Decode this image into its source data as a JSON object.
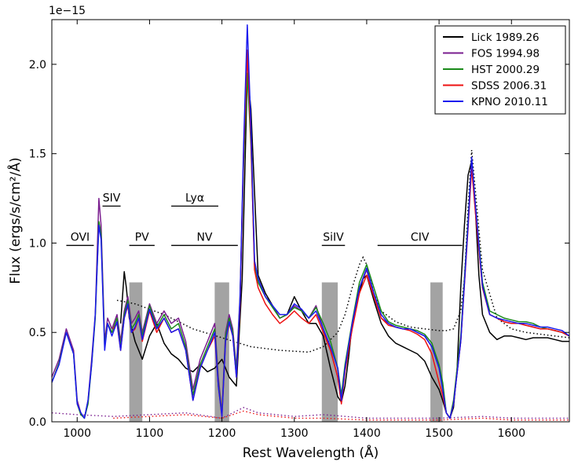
{
  "chart_data": {
    "type": "line",
    "xlabel": "Rest Wavelength (Å)",
    "ylabel": "Flux (ergs/s/cm²/Å)",
    "y_multiplier": "1e−15",
    "xlim": [
      965,
      1680
    ],
    "ylim": [
      0,
      2.25
    ],
    "x_ticks": [
      1000,
      1100,
      1200,
      1300,
      1400,
      1500,
      1600
    ],
    "x_tick_labels": [
      "1000",
      "1100",
      "1200",
      "1300",
      "1400",
      "1500",
      "1600"
    ],
    "y_ticks": [
      0.0,
      0.5,
      1.0,
      1.5,
      2.0
    ],
    "y_tick_labels": [
      "0.0",
      "0.5",
      "1.0",
      "1.5",
      "2.0"
    ],
    "legend_position": "top-right",
    "series": [
      {
        "name": "Lick 1989.26",
        "color": "#000000",
        "x": [
          1060,
          1065,
          1068,
          1072,
          1080,
          1090,
          1100,
          1110,
          1120,
          1130,
          1140,
          1150,
          1160,
          1170,
          1180,
          1190,
          1200,
          1210,
          1220,
          1228,
          1235,
          1240,
          1250,
          1260,
          1270,
          1280,
          1290,
          1300,
          1310,
          1320,
          1330,
          1340,
          1350,
          1360,
          1365,
          1370,
          1375,
          1380,
          1385,
          1390,
          1395,
          1400,
          1410,
          1420,
          1430,
          1440,
          1450,
          1460,
          1470,
          1480,
          1490,
          1500,
          1505,
          1510,
          1515,
          1520,
          1525,
          1530,
          1535,
          1540,
          1545,
          1550,
          1555,
          1560,
          1570,
          1580,
          1590,
          1600,
          1610,
          1620,
          1630,
          1640,
          1650,
          1660,
          1670,
          1680
        ],
        "y": [
          0.55,
          0.84,
          0.75,
          0.58,
          0.45,
          0.35,
          0.48,
          0.55,
          0.44,
          0.38,
          0.35,
          0.3,
          0.28,
          0.32,
          0.28,
          0.3,
          0.35,
          0.25,
          0.2,
          0.8,
          1.95,
          1.75,
          0.82,
          0.72,
          0.65,
          0.58,
          0.6,
          0.7,
          0.62,
          0.55,
          0.55,
          0.48,
          0.3,
          0.14,
          0.11,
          0.2,
          0.36,
          0.55,
          0.65,
          0.72,
          0.8,
          0.82,
          0.68,
          0.55,
          0.48,
          0.44,
          0.42,
          0.4,
          0.38,
          0.34,
          0.25,
          0.18,
          0.12,
          0.05,
          0.02,
          0.08,
          0.3,
          0.75,
          1.1,
          1.38,
          1.46,
          1.2,
          0.82,
          0.6,
          0.5,
          0.46,
          0.48,
          0.48,
          0.47,
          0.46,
          0.47,
          0.47,
          0.47,
          0.46,
          0.45,
          0.45
        ]
      },
      {
        "name": "FOS 1994.98",
        "color": "#7a1e8f",
        "x": [
          965,
          975,
          985,
          995,
          1000,
          1005,
          1010,
          1015,
          1020,
          1025,
          1030,
          1033,
          1038,
          1042,
          1048,
          1055,
          1060,
          1065,
          1070,
          1075,
          1080,
          1085,
          1090,
          1100,
          1110,
          1120,
          1130,
          1140,
          1150,
          1160,
          1170,
          1180,
          1190,
          1195,
          1200,
          1205,
          1210,
          1215,
          1220,
          1225,
          1230,
          1235,
          1240,
          1245,
          1250,
          1260,
          1270,
          1280,
          1290,
          1300,
          1310,
          1320,
          1330,
          1340,
          1350,
          1360,
          1365,
          1370,
          1380,
          1390,
          1400,
          1410,
          1420,
          1430,
          1440,
          1450,
          1460,
          1470,
          1480,
          1490,
          1500,
          1505,
          1510,
          1515,
          1520,
          1530,
          1540,
          1545,
          1550,
          1560,
          1570,
          1580,
          1590,
          1600,
          1610,
          1620,
          1630,
          1640,
          1650,
          1660,
          1670,
          1680
        ],
        "y": [
          0.25,
          0.35,
          0.52,
          0.4,
          0.12,
          0.05,
          0.02,
          0.12,
          0.35,
          0.6,
          1.25,
          1.1,
          0.45,
          0.58,
          0.52,
          0.6,
          0.45,
          0.62,
          0.7,
          0.55,
          0.58,
          0.62,
          0.5,
          0.66,
          0.55,
          0.62,
          0.55,
          0.58,
          0.45,
          0.18,
          0.35,
          0.45,
          0.55,
          0.25,
          0.05,
          0.5,
          0.6,
          0.52,
          0.3,
          0.7,
          1.5,
          2.05,
          1.6,
          0.9,
          0.8,
          0.7,
          0.65,
          0.58,
          0.6,
          0.65,
          0.62,
          0.58,
          0.65,
          0.52,
          0.4,
          0.25,
          0.12,
          0.3,
          0.55,
          0.75,
          0.85,
          0.7,
          0.58,
          0.55,
          0.53,
          0.52,
          0.52,
          0.5,
          0.48,
          0.42,
          0.3,
          0.2,
          0.05,
          0.02,
          0.1,
          0.45,
          1.1,
          1.45,
          1.2,
          0.75,
          0.6,
          0.58,
          0.56,
          0.55,
          0.55,
          0.54,
          0.53,
          0.52,
          0.52,
          0.51,
          0.5,
          0.48
        ]
      },
      {
        "name": "HST 2000.29",
        "color": "#1a8a1a",
        "x": [
          965,
          975,
          985,
          995,
          1000,
          1005,
          1010,
          1015,
          1020,
          1025,
          1030,
          1033,
          1038,
          1042,
          1048,
          1055,
          1060,
          1065,
          1070,
          1075,
          1080,
          1085,
          1090,
          1100,
          1110,
          1120,
          1130,
          1140,
          1150,
          1160,
          1170,
          1180,
          1190,
          1195,
          1200,
          1205,
          1210,
          1215,
          1220,
          1225,
          1230,
          1235,
          1240,
          1245,
          1250,
          1260,
          1270,
          1280,
          1290,
          1300,
          1310,
          1320,
          1330,
          1340,
          1350,
          1360,
          1365,
          1370,
          1380,
          1390,
          1400,
          1410,
          1420,
          1430,
          1440,
          1450,
          1460,
          1470,
          1480,
          1490,
          1500,
          1505,
          1510,
          1515,
          1520,
          1530,
          1540,
          1545,
          1550,
          1560,
          1570,
          1580,
          1590,
          1600,
          1610,
          1620,
          1630,
          1640,
          1650,
          1660,
          1670,
          1680
        ],
        "y": [
          0.22,
          0.33,
          0.5,
          0.38,
          0.1,
          0.04,
          0.02,
          0.1,
          0.32,
          0.58,
          1.12,
          1.05,
          0.42,
          0.55,
          0.5,
          0.58,
          0.42,
          0.6,
          0.68,
          0.52,
          0.55,
          0.6,
          0.48,
          0.65,
          0.53,
          0.6,
          0.52,
          0.55,
          0.42,
          0.15,
          0.32,
          0.42,
          0.52,
          0.22,
          0.04,
          0.48,
          0.58,
          0.5,
          0.28,
          0.68,
          1.45,
          1.95,
          1.55,
          0.88,
          0.78,
          0.7,
          0.64,
          0.58,
          0.6,
          0.64,
          0.62,
          0.58,
          0.64,
          0.55,
          0.45,
          0.3,
          0.15,
          0.32,
          0.56,
          0.78,
          0.88,
          0.75,
          0.62,
          0.56,
          0.54,
          0.53,
          0.52,
          0.51,
          0.49,
          0.44,
          0.32,
          0.22,
          0.05,
          0.02,
          0.12,
          0.48,
          1.12,
          1.45,
          1.22,
          0.78,
          0.62,
          0.6,
          0.58,
          0.57,
          0.56,
          0.56,
          0.55,
          0.53,
          0.52,
          0.51,
          0.5,
          0.48
        ]
      },
      {
        "name": "SDSS 2006.31",
        "color": "#ee1111",
        "x": [
          1050,
          1055,
          1060,
          1065,
          1070,
          1075,
          1080,
          1085,
          1090,
          1100,
          1110,
          1120,
          1130,
          1140,
          1150,
          1160,
          1170,
          1180,
          1190,
          1195,
          1200,
          1205,
          1210,
          1215,
          1220,
          1225,
          1230,
          1235,
          1240,
          1245,
          1250,
          1260,
          1270,
          1280,
          1290,
          1300,
          1310,
          1320,
          1330,
          1340,
          1350,
          1360,
          1365,
          1370,
          1380,
          1390,
          1400,
          1410,
          1420,
          1430,
          1440,
          1450,
          1460,
          1470,
          1480,
          1490,
          1500,
          1505,
          1510,
          1515,
          1520,
          1530,
          1540,
          1545,
          1550,
          1560,
          1570,
          1580,
          1590,
          1600,
          1610,
          1620,
          1630,
          1640,
          1650,
          1660,
          1670,
          1680
        ],
        "y": [
          0.52,
          0.55,
          0.4,
          0.58,
          0.65,
          0.5,
          0.52,
          0.58,
          0.45,
          0.62,
          0.5,
          0.58,
          0.5,
          0.52,
          0.4,
          0.12,
          0.3,
          0.4,
          0.48,
          0.2,
          0.03,
          0.45,
          0.55,
          0.48,
          0.25,
          0.65,
          1.5,
          2.08,
          1.58,
          0.85,
          0.75,
          0.66,
          0.6,
          0.55,
          0.58,
          0.62,
          0.58,
          0.55,
          0.6,
          0.5,
          0.4,
          0.25,
          0.1,
          0.28,
          0.52,
          0.72,
          0.82,
          0.7,
          0.58,
          0.54,
          0.53,
          0.52,
          0.51,
          0.49,
          0.46,
          0.38,
          0.22,
          0.15,
          0.05,
          0.02,
          0.1,
          0.45,
          1.08,
          1.42,
          1.18,
          0.75,
          0.6,
          0.58,
          0.56,
          0.55,
          0.55,
          0.54,
          0.53,
          0.52,
          0.52,
          0.51,
          0.5,
          0.48
        ]
      },
      {
        "name": "KPNO 2010.11",
        "color": "#1a1aee",
        "x": [
          965,
          975,
          985,
          995,
          1000,
          1005,
          1010,
          1015,
          1020,
          1025,
          1030,
          1033,
          1038,
          1042,
          1048,
          1055,
          1060,
          1065,
          1070,
          1075,
          1080,
          1085,
          1090,
          1100,
          1110,
          1120,
          1130,
          1140,
          1150,
          1160,
          1170,
          1180,
          1190,
          1195,
          1200,
          1205,
          1210,
          1215,
          1220,
          1225,
          1230,
          1235,
          1240,
          1245,
          1250,
          1260,
          1270,
          1280,
          1290,
          1300,
          1310,
          1320,
          1330,
          1340,
          1350,
          1360,
          1365,
          1370,
          1380,
          1390,
          1400,
          1410,
          1420,
          1430,
          1440,
          1450,
          1460,
          1470,
          1480,
          1490,
          1500,
          1505,
          1510,
          1515,
          1520,
          1530,
          1540,
          1545,
          1550,
          1560,
          1570,
          1580,
          1590,
          1600,
          1610,
          1620,
          1630,
          1640,
          1650,
          1660,
          1670,
          1680
        ],
        "y": [
          0.22,
          0.32,
          0.5,
          0.38,
          0.1,
          0.05,
          0.02,
          0.12,
          0.32,
          0.6,
          1.1,
          1.02,
          0.4,
          0.55,
          0.48,
          0.56,
          0.4,
          0.58,
          0.66,
          0.5,
          0.53,
          0.58,
          0.46,
          0.63,
          0.52,
          0.58,
          0.5,
          0.52,
          0.4,
          0.12,
          0.3,
          0.4,
          0.5,
          0.2,
          0.03,
          0.45,
          0.56,
          0.48,
          0.25,
          0.68,
          1.55,
          2.22,
          1.65,
          0.9,
          0.8,
          0.7,
          0.65,
          0.6,
          0.6,
          0.66,
          0.63,
          0.58,
          0.62,
          0.52,
          0.42,
          0.3,
          0.12,
          0.3,
          0.55,
          0.75,
          0.86,
          0.72,
          0.6,
          0.55,
          0.53,
          0.52,
          0.52,
          0.5,
          0.48,
          0.42,
          0.3,
          0.18,
          0.05,
          0.02,
          0.1,
          0.45,
          1.1,
          1.48,
          1.22,
          0.76,
          0.6,
          0.58,
          0.57,
          0.56,
          0.55,
          0.55,
          0.54,
          0.53,
          0.53,
          0.52,
          0.51,
          0.48
        ]
      }
    ],
    "continuum_dotted": {
      "color": "#000000",
      "x": [
        1055,
        1080,
        1120,
        1160,
        1200,
        1240,
        1280,
        1320,
        1340,
        1360,
        1370,
        1380,
        1390,
        1395,
        1400,
        1410,
        1420,
        1440,
        1460,
        1480,
        1500,
        1510,
        1520,
        1530,
        1535,
        1540,
        1545,
        1550,
        1560,
        1580,
        1600,
        1620,
        1640,
        1660,
        1680
      ],
      "y": [
        0.68,
        0.66,
        0.6,
        0.52,
        0.47,
        0.42,
        0.4,
        0.39,
        0.42,
        0.5,
        0.6,
        0.75,
        0.88,
        0.92,
        0.88,
        0.72,
        0.62,
        0.56,
        0.53,
        0.52,
        0.51,
        0.51,
        0.52,
        0.62,
        0.8,
        1.2,
        1.52,
        1.3,
        0.85,
        0.58,
        0.52,
        0.5,
        0.49,
        0.48,
        0.47
      ]
    },
    "error_dotted": [
      {
        "color": "#7a1e8f",
        "x": [
          965,
          1000,
          1050,
          1100,
          1150,
          1200,
          1230,
          1250,
          1300,
          1340,
          1400,
          1500,
          1560,
          1600,
          1680
        ],
        "y": [
          0.05,
          0.04,
          0.03,
          0.04,
          0.05,
          0.02,
          0.08,
          0.05,
          0.03,
          0.04,
          0.02,
          0.02,
          0.03,
          0.02,
          0.02
        ]
      },
      {
        "color": "#ee1111",
        "x": [
          1050,
          1100,
          1150,
          1200,
          1230,
          1250,
          1300,
          1340,
          1400,
          1500,
          1560,
          1600,
          1680
        ],
        "y": [
          0.02,
          0.03,
          0.04,
          0.02,
          0.06,
          0.04,
          0.02,
          0.02,
          0.01,
          0.01,
          0.02,
          0.01,
          0.01
        ]
      }
    ],
    "shaded_bands": [
      {
        "x0": 1072,
        "x1": 1090,
        "y1": 0.78
      },
      {
        "x0": 1190,
        "x1": 1210,
        "y1": 0.78
      },
      {
        "x0": 1338,
        "x1": 1360,
        "y1": 0.78
      },
      {
        "x0": 1488,
        "x1": 1505,
        "y1": 0.78
      }
    ],
    "regions": [
      {
        "label": "OVI",
        "x0": 985,
        "x1": 1023,
        "y": 1.0
      },
      {
        "label": "SIV",
        "x0": 1035,
        "x1": 1060,
        "y": 1.22
      },
      {
        "label": "PV",
        "x0": 1072,
        "x1": 1107,
        "y": 1.0
      },
      {
        "label": "Lyα",
        "x0": 1130,
        "x1": 1195,
        "y": 1.22
      },
      {
        "label": "NV",
        "x0": 1130,
        "x1": 1222,
        "y": 1.0
      },
      {
        "label": "SiIV",
        "x0": 1338,
        "x1": 1370,
        "y": 1.0
      },
      {
        "label": "CIV",
        "x0": 1415,
        "x1": 1532,
        "y": 1.0
      }
    ]
  }
}
